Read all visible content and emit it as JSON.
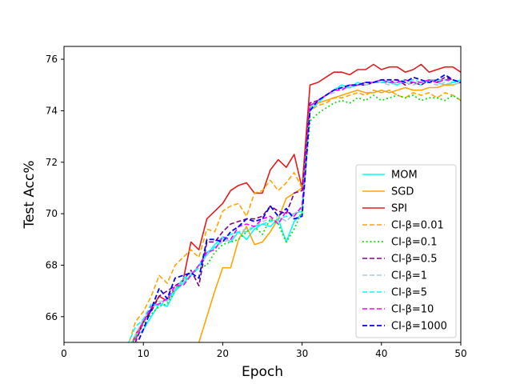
{
  "chart_data": {
    "type": "line",
    "title": "",
    "xlabel": "Epoch",
    "ylabel": "Test Acc%",
    "xlim": [
      0,
      50
    ],
    "ylim": [
      65.0,
      76.5
    ],
    "x_ticks": [
      0,
      10,
      20,
      30,
      40,
      50
    ],
    "y_ticks": [
      66,
      68,
      70,
      72,
      74,
      76
    ],
    "grid": false,
    "legend_position": "lower right",
    "series": [
      {
        "name": "MOM",
        "color": "#00ffff",
        "dash": "solid",
        "width": 1.6,
        "x": [
          8,
          9,
          10,
          11,
          12,
          13,
          14,
          15,
          16,
          17,
          18,
          19,
          20,
          21,
          22,
          23,
          24,
          25,
          26,
          27,
          28,
          29,
          30,
          31,
          32,
          33,
          34,
          35,
          36,
          37,
          38,
          39,
          40,
          41,
          42,
          43,
          44,
          45,
          46,
          47,
          48,
          49,
          50
        ],
        "y": [
          64.5,
          65.2,
          65.5,
          66.0,
          66.5,
          66.4,
          67.0,
          67.3,
          67.6,
          68.0,
          68.4,
          68.8,
          69.1,
          68.9,
          69.3,
          69.0,
          69.4,
          69.6,
          69.5,
          69.8,
          68.9,
          69.7,
          70.0,
          74.0,
          74.3,
          74.6,
          74.8,
          75.0,
          74.9,
          75.1,
          75.0,
          75.1,
          75.2,
          75.1,
          75.0,
          75.2,
          75.1,
          75.0,
          75.2,
          75.1,
          75.0,
          75.1,
          75.2
        ]
      },
      {
        "name": "SGD",
        "color": "#ffa500",
        "dash": "solid",
        "width": 1.6,
        "x": [
          16,
          17,
          18,
          19,
          20,
          21,
          22,
          23,
          24,
          25,
          26,
          27,
          28,
          29,
          30,
          31,
          32,
          33,
          34,
          35,
          36,
          37,
          38,
          39,
          40,
          41,
          42,
          43,
          44,
          45,
          46,
          47,
          48,
          49,
          50
        ],
        "y": [
          64.2,
          65.0,
          66.0,
          67.0,
          67.9,
          67.9,
          69.0,
          69.5,
          68.8,
          68.9,
          69.3,
          69.8,
          70.6,
          70.8,
          71.0,
          74.2,
          74.3,
          74.4,
          74.5,
          74.6,
          74.7,
          74.8,
          74.7,
          74.7,
          74.8,
          74.7,
          74.8,
          74.9,
          74.8,
          74.8,
          74.9,
          74.9,
          75.0,
          75.0,
          75.1
        ]
      },
      {
        "name": "SPI",
        "color": "#e31a1c",
        "dash": "solid",
        "width": 1.6,
        "x": [
          8,
          9,
          10,
          11,
          12,
          13,
          14,
          15,
          16,
          17,
          18,
          19,
          20,
          21,
          22,
          23,
          24,
          25,
          26,
          27,
          28,
          29,
          30,
          31,
          32,
          33,
          34,
          35,
          36,
          37,
          38,
          39,
          40,
          41,
          42,
          43,
          44,
          45,
          46,
          47,
          48,
          49,
          50
        ],
        "y": [
          64.5,
          65.3,
          65.8,
          66.3,
          66.8,
          66.6,
          67.1,
          67.4,
          68.9,
          68.6,
          69.8,
          70.1,
          70.4,
          70.9,
          71.1,
          71.2,
          70.8,
          70.8,
          71.7,
          72.1,
          71.8,
          72.3,
          71.0,
          75.0,
          75.1,
          75.3,
          75.5,
          75.5,
          75.4,
          75.6,
          75.6,
          75.8,
          75.6,
          75.7,
          75.7,
          75.5,
          75.6,
          75.8,
          75.5,
          75.6,
          75.7,
          75.7,
          75.5
        ]
      },
      {
        "name": "CI-β=0.01",
        "color": "#ffa500",
        "dash": "dashed",
        "width": 1.6,
        "x": [
          8,
          9,
          10,
          11,
          12,
          13,
          14,
          15,
          16,
          17,
          18,
          19,
          20,
          21,
          22,
          23,
          24,
          25,
          26,
          27,
          28,
          29,
          30,
          31,
          32,
          33,
          34,
          35,
          36,
          37,
          38,
          39,
          40,
          41,
          42,
          43,
          44,
          45,
          46,
          47,
          48,
          49,
          50
        ],
        "y": [
          64.8,
          65.8,
          66.2,
          66.8,
          67.6,
          67.3,
          68.0,
          68.3,
          68.6,
          68.3,
          69.4,
          69.3,
          70.1,
          70.3,
          70.4,
          69.9,
          70.8,
          70.9,
          71.3,
          70.9,
          71.2,
          71.6,
          71.0,
          74.0,
          74.2,
          74.3,
          74.5,
          74.5,
          74.6,
          74.7,
          74.6,
          74.8,
          74.7,
          74.8,
          74.6,
          74.5,
          74.7,
          74.6,
          74.7,
          74.5,
          74.7,
          74.6,
          74.4
        ]
      },
      {
        "name": "CI-β=0.1",
        "color": "#00e000",
        "dash": "dotted",
        "width": 1.8,
        "x": [
          8,
          9,
          10,
          11,
          12,
          13,
          14,
          15,
          16,
          17,
          18,
          19,
          20,
          21,
          22,
          23,
          24,
          25,
          26,
          27,
          28,
          29,
          30,
          31,
          32,
          33,
          34,
          35,
          36,
          37,
          38,
          39,
          40,
          41,
          42,
          43,
          44,
          45,
          46,
          47,
          48,
          49,
          50
        ],
        "y": [
          64.6,
          65.2,
          65.7,
          66.1,
          66.4,
          66.5,
          67.0,
          67.4,
          67.6,
          67.9,
          68.0,
          68.5,
          68.8,
          68.9,
          69.0,
          69.3,
          69.5,
          69.2,
          69.8,
          69.6,
          68.9,
          69.4,
          70.1,
          73.6,
          73.9,
          74.1,
          74.3,
          74.4,
          74.3,
          74.5,
          74.4,
          74.6,
          74.4,
          74.5,
          74.6,
          74.5,
          74.6,
          74.4,
          74.5,
          74.5,
          74.4,
          74.6,
          74.4
        ]
      },
      {
        "name": "CI-β=0.5",
        "color": "#800080",
        "dash": "dashed",
        "width": 1.6,
        "x": [
          8,
          9,
          10,
          11,
          12,
          13,
          14,
          15,
          16,
          17,
          18,
          19,
          20,
          21,
          22,
          23,
          24,
          25,
          26,
          27,
          28,
          29,
          30,
          31,
          32,
          33,
          34,
          35,
          36,
          37,
          38,
          39,
          40,
          41,
          42,
          43,
          44,
          45,
          46,
          47,
          48,
          49,
          50
        ],
        "y": [
          64.5,
          65.0,
          65.8,
          66.2,
          66.8,
          67.0,
          67.2,
          67.4,
          67.8,
          67.2,
          68.9,
          68.9,
          69.3,
          69.6,
          69.7,
          69.8,
          69.8,
          69.9,
          70.3,
          70.1,
          70.0,
          70.8,
          70.9,
          74.3,
          74.4,
          74.6,
          74.8,
          74.9,
          74.9,
          75.0,
          75.0,
          75.1,
          75.1,
          75.1,
          75.2,
          75.0,
          75.1,
          75.0,
          75.2,
          75.1,
          75.3,
          75.2,
          75.1
        ]
      },
      {
        "name": "CI-β=1",
        "color": "#a6c8e0",
        "dash": "dashed",
        "width": 1.6,
        "x": [
          8,
          9,
          10,
          11,
          12,
          13,
          14,
          15,
          16,
          17,
          18,
          19,
          20,
          21,
          22,
          23,
          24,
          25,
          26,
          27,
          28,
          29,
          30,
          31,
          32,
          33,
          34,
          35,
          36,
          37,
          38,
          39,
          40,
          41,
          42,
          43,
          44,
          45,
          46,
          47,
          48,
          49,
          50
        ],
        "y": [
          64.7,
          65.3,
          65.9,
          66.3,
          66.6,
          66.6,
          67.1,
          67.4,
          67.7,
          67.9,
          68.4,
          68.7,
          68.9,
          69.0,
          69.3,
          69.4,
          69.5,
          69.7,
          69.8,
          69.9,
          69.7,
          70.0,
          70.2,
          74.1,
          74.4,
          74.6,
          74.7,
          74.9,
          74.9,
          75.0,
          75.0,
          75.1,
          75.1,
          75.0,
          75.1,
          75.1,
          75.0,
          75.1,
          75.1,
          75.0,
          75.1,
          75.0,
          75.1
        ]
      },
      {
        "name": "CI-β=5",
        "color": "#00ffff",
        "dash": "dashed",
        "width": 1.6,
        "x": [
          8,
          9,
          10,
          11,
          12,
          13,
          14,
          15,
          16,
          17,
          18,
          19,
          20,
          21,
          22,
          23,
          24,
          25,
          26,
          27,
          28,
          29,
          30,
          31,
          32,
          33,
          34,
          35,
          36,
          37,
          38,
          39,
          40,
          41,
          42,
          43,
          44,
          45,
          46,
          47,
          48,
          49,
          50
        ],
        "y": [
          64.9,
          65.6,
          65.9,
          66.5,
          66.4,
          66.7,
          67.0,
          67.5,
          67.6,
          67.9,
          68.5,
          68.7,
          69.0,
          69.2,
          69.3,
          69.3,
          69.5,
          69.6,
          69.7,
          69.8,
          69.9,
          70.0,
          70.1,
          74.1,
          74.4,
          74.6,
          74.8,
          74.9,
          74.9,
          75.0,
          75.1,
          75.1,
          75.1,
          75.1,
          75.1,
          75.2,
          75.2,
          75.1,
          75.2,
          75.2,
          75.2,
          75.1,
          75.1
        ]
      },
      {
        "name": "CI-β=10",
        "color": "#ff00ff",
        "dash": "dashed",
        "width": 1.6,
        "x": [
          8,
          9,
          10,
          11,
          12,
          13,
          14,
          15,
          16,
          17,
          18,
          19,
          20,
          21,
          22,
          23,
          24,
          25,
          26,
          27,
          28,
          29,
          30,
          31,
          32,
          33,
          34,
          35,
          36,
          37,
          38,
          39,
          40,
          41,
          42,
          43,
          44,
          45,
          46,
          47,
          48,
          49,
          50
        ],
        "y": [
          64.6,
          65.1,
          65.8,
          66.4,
          66.5,
          66.7,
          67.2,
          67.2,
          67.6,
          68.0,
          68.5,
          68.6,
          69.1,
          69.0,
          69.5,
          69.6,
          69.5,
          69.8,
          69.9,
          69.6,
          70.1,
          69.9,
          70.3,
          74.2,
          74.4,
          74.6,
          74.8,
          74.8,
          75.0,
          75.0,
          75.1,
          75.1,
          75.2,
          75.1,
          75.1,
          75.2,
          75.1,
          75.1,
          75.2,
          75.1,
          75.2,
          75.2,
          75.1
        ]
      },
      {
        "name": "CI-β=1000",
        "color": "#0000ff",
        "dash": "dashed",
        "width": 1.8,
        "x": [
          8,
          9,
          10,
          11,
          12,
          13,
          14,
          15,
          16,
          17,
          18,
          19,
          20,
          21,
          22,
          23,
          24,
          25,
          26,
          27,
          28,
          29,
          30,
          31,
          32,
          33,
          34,
          35,
          36,
          37,
          38,
          39,
          40,
          41,
          42,
          43,
          44,
          45,
          46,
          47,
          48,
          49,
          50
        ],
        "y": [
          64.4,
          64.8,
          65.5,
          66.3,
          67.1,
          66.7,
          67.5,
          67.6,
          67.7,
          67.5,
          69.0,
          69.0,
          68.9,
          69.3,
          69.5,
          69.8,
          69.7,
          69.8,
          70.3,
          69.9,
          70.2,
          69.8,
          69.9,
          74.0,
          74.4,
          74.6,
          74.8,
          74.9,
          75.0,
          75.0,
          75.1,
          75.1,
          75.2,
          75.2,
          75.2,
          75.1,
          75.3,
          75.2,
          75.1,
          75.2,
          75.4,
          75.2,
          75.1
        ]
      }
    ]
  }
}
